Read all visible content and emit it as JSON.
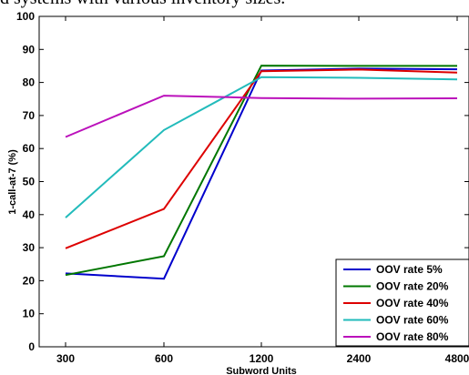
{
  "caption": "d systems with various inventory sizes.",
  "chart_data": {
    "type": "line",
    "xlabel": "Subword Units",
    "ylabel": "1-call-at-7 (%)",
    "categories": [
      "300",
      "600",
      "1200",
      "2400",
      "4800"
    ],
    "ylim": [
      0,
      100
    ],
    "yticks": [
      0,
      10,
      20,
      30,
      40,
      50,
      60,
      70,
      80,
      90,
      100
    ],
    "grid": false,
    "legend_position": "bottom-right",
    "series": [
      {
        "name": "OOV rate 5%",
        "color": "#0000cc",
        "values": [
          22.2,
          20.6,
          83.6,
          84.2,
          84.0
        ]
      },
      {
        "name": "OOV rate 20%",
        "color": "#007700",
        "values": [
          21.7,
          27.4,
          85.1,
          85.0,
          85.0
        ]
      },
      {
        "name": "OOV rate 40%",
        "color": "#dd0000",
        "values": [
          29.8,
          41.7,
          83.4,
          83.9,
          83.0
        ]
      },
      {
        "name": "OOV rate 60%",
        "color": "#22bbbb",
        "values": [
          39.1,
          65.6,
          81.6,
          81.4,
          80.9
        ]
      },
      {
        "name": "OOV rate 80%",
        "color": "#bb11bb",
        "values": [
          63.5,
          76.0,
          75.3,
          75.1,
          75.2
        ]
      }
    ]
  }
}
